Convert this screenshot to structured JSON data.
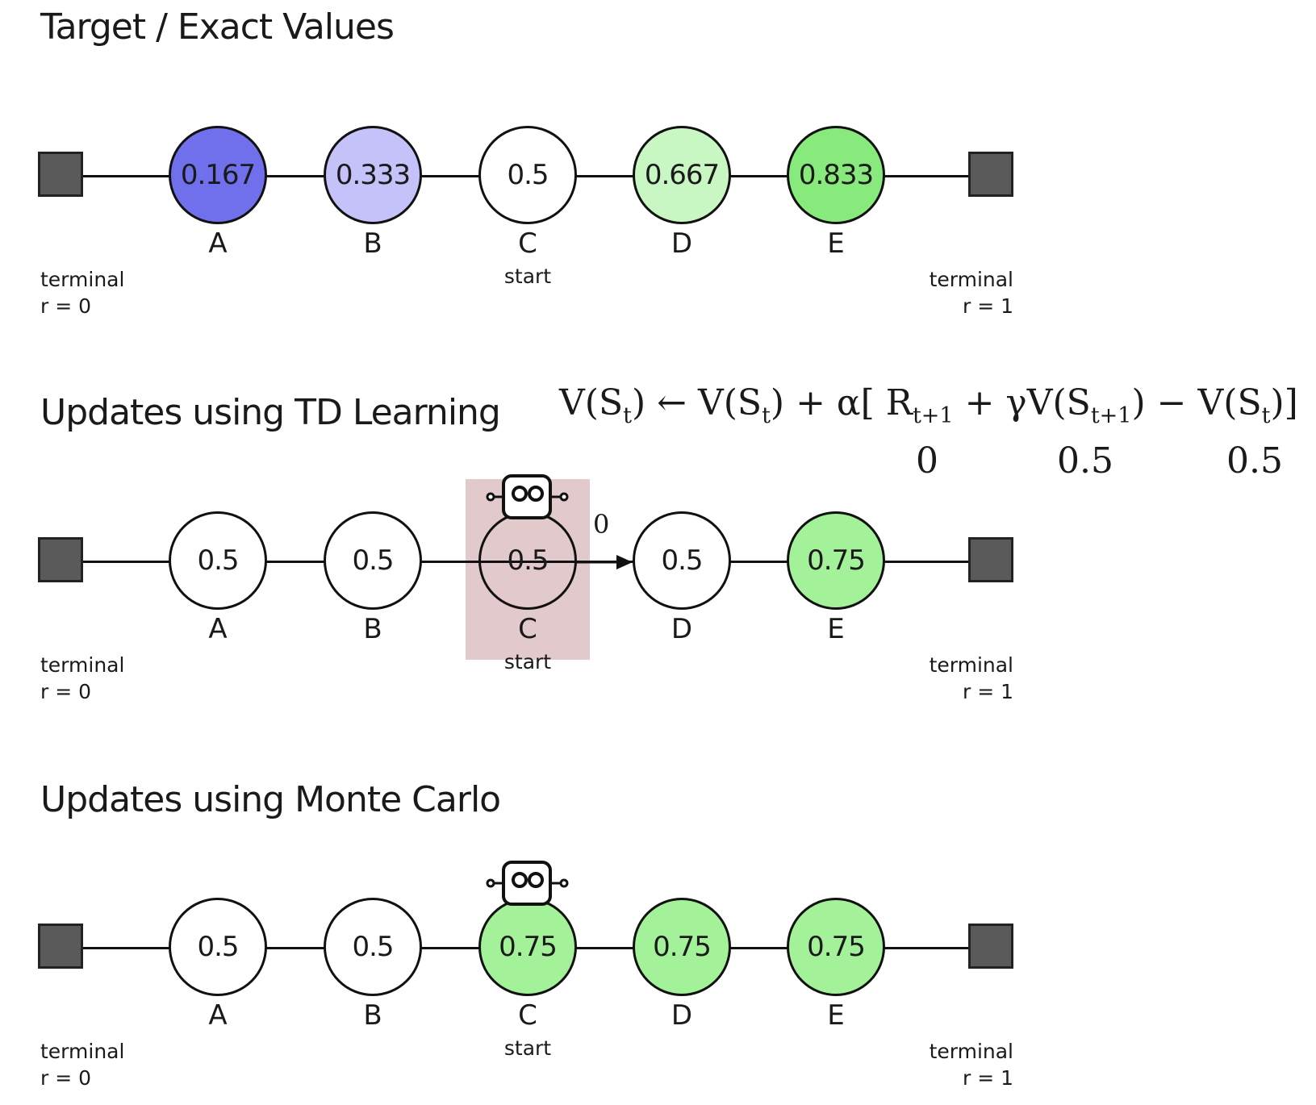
{
  "colors": {
    "terminal": "#5a5a5a",
    "outline": "#111111",
    "highlight": "rgba(176, 112, 120, 0.38)"
  },
  "terminals": {
    "left_line1": "terminal",
    "left_line2": "r = 0",
    "right_line1": "terminal",
    "right_line2": "r = 1"
  },
  "start_label": "start",
  "state_labels": [
    "A",
    "B",
    "C",
    "D",
    "E"
  ],
  "sections": {
    "target": {
      "title": "Target / Exact Values",
      "values": [
        "0.167",
        "0.333",
        "0.5",
        "0.667",
        "0.833"
      ],
      "fills": [
        "#7070ec",
        "#c4c2f8",
        "#ffffff",
        "#c9f7c3",
        "#88ea7c"
      ]
    },
    "td": {
      "title": "Updates using TD Learning",
      "values": [
        "0.5",
        "0.5",
        "0.5",
        "0.5",
        "0.75"
      ],
      "fills": [
        "#ffffff",
        "#ffffff",
        "#ffffff",
        "#ffffff",
        "#a3f29a"
      ],
      "transition_reward": "0",
      "equation": {
        "lhs_v": "V(S",
        "lhs_sub": "t",
        "lhs_close": ")",
        "arrow": " ← ",
        "v2": "V(S",
        "v2_sub": "t",
        "v2_close": ") + α[ ",
        "r": "R",
        "r_sub": "t+1",
        "plus_gamma": " + γV(S",
        "next_sub": "t+1",
        "next_close": ")  − ",
        "v3": "V(S",
        "v3_sub": "t",
        "v3_close": ")]",
        "values": [
          "0",
          "0.5",
          "0.5"
        ]
      }
    },
    "mc": {
      "title": "Updates using Monte Carlo",
      "values": [
        "0.5",
        "0.5",
        "0.75",
        "0.75",
        "0.75"
      ],
      "fills": [
        "#ffffff",
        "#ffffff",
        "#a3f29a",
        "#a3f29a",
        "#a3f29a"
      ]
    }
  }
}
